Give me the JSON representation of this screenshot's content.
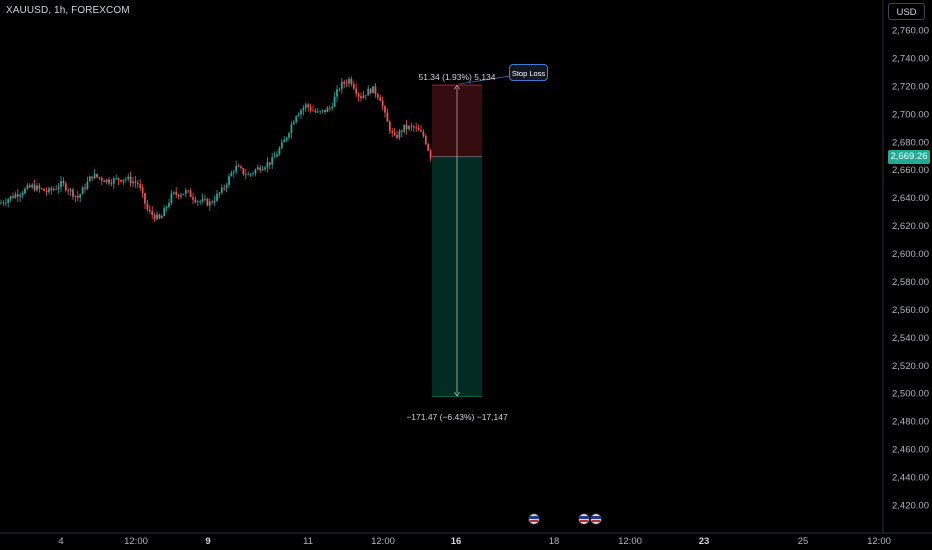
{
  "symbol_label": "XAUUSD, 1h, FOREXCOM",
  "currency": "USD",
  "last_price": "2,669.26",
  "colors": {
    "up": "#26a69a",
    "down": "#ef5350",
    "background": "#000000",
    "last_price_tag": "#22ab94"
  },
  "events": [
    "us-flag-icon",
    "us-flag-icon",
    "us-flag-icon"
  ],
  "chart_data": {
    "type": "candlestick",
    "price_axis": {
      "ticks": [
        2420,
        2440,
        2460,
        2480,
        2500,
        2520,
        2540,
        2560,
        2580,
        2600,
        2620,
        2640,
        2660,
        2680,
        2700,
        2720,
        2740,
        2760
      ],
      "tick_labels": [
        "2,420.00",
        "2,440.00",
        "2,460.00",
        "2,480.00",
        "2,500.00",
        "2,520.00",
        "2,540.00",
        "2,560.00",
        "2,580.00",
        "2,600.00",
        "2,620.00",
        "2,640.00",
        "2,660.00",
        "2,680.00",
        "2,700.00",
        "2,720.00",
        "2,740.00",
        "2,760.00"
      ],
      "range": [
        2408,
        2772
      ]
    },
    "time_axis": {
      "labels": [
        "4",
        "12:00",
        "9",
        "11",
        "12:00",
        "16",
        "18",
        "12:00",
        "23",
        "25",
        "12:00"
      ],
      "bold": [
        false,
        false,
        true,
        false,
        false,
        true,
        false,
        false,
        true,
        false,
        false
      ]
    },
    "price_path": [
      [
        0,
        2636
      ],
      [
        15,
        2642
      ],
      [
        32,
        2648
      ],
      [
        48,
        2644
      ],
      [
        62,
        2650
      ],
      [
        78,
        2640
      ],
      [
        92,
        2656
      ],
      [
        108,
        2652
      ],
      [
        125,
        2654
      ],
      [
        138,
        2650
      ],
      [
        148,
        2630
      ],
      [
        160,
        2624
      ],
      [
        172,
        2642
      ],
      [
        186,
        2644
      ],
      [
        198,
        2638
      ],
      [
        210,
        2636
      ],
      [
        222,
        2645
      ],
      [
        235,
        2662
      ],
      [
        248,
        2656
      ],
      [
        260,
        2662
      ],
      [
        272,
        2666
      ],
      [
        284,
        2680
      ],
      [
        296,
        2700
      ],
      [
        306,
        2706
      ],
      [
        318,
        2700
      ],
      [
        330,
        2704
      ],
      [
        340,
        2720
      ],
      [
        350,
        2725
      ],
      [
        360,
        2712
      ],
      [
        372,
        2718
      ],
      [
        380,
        2712
      ],
      [
        386,
        2696
      ],
      [
        394,
        2682
      ],
      [
        404,
        2690
      ],
      [
        414,
        2690
      ],
      [
        424,
        2684
      ],
      [
        431,
        2669
      ]
    ],
    "position": {
      "type": "short",
      "entry": 2669.26,
      "stop": 2720.6,
      "target": 2497.79,
      "stop_label": "51.34 (1.93%) 5,134",
      "target_label": "−171.47 (−6.43%) −17,147",
      "stop_annotation": "Stop Loss"
    }
  }
}
